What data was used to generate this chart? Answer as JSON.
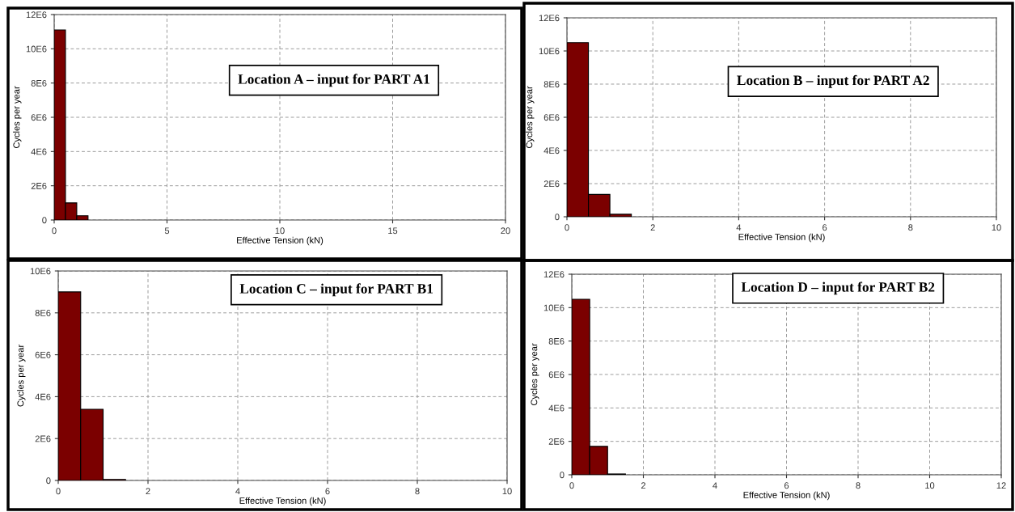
{
  "chart_data": [
    {
      "type": "histogram",
      "title": "Location A – input for PART A1",
      "xlabel": "Effective Tension (kN)",
      "ylabel": "Cycles per year",
      "bins": [
        0,
        0.5,
        1.0,
        1.5
      ],
      "values": [
        11100000,
        1000000,
        250000
      ],
      "color": "#7b0000",
      "xlim": [
        0,
        20
      ],
      "xticks": [
        0,
        5,
        10,
        15,
        20
      ],
      "ylim": [
        0,
        12000000
      ],
      "yticks": [
        {
          "value": 0,
          "label": "0"
        },
        {
          "value": 2000000,
          "label": "2E6"
        },
        {
          "value": 4000000,
          "label": "4E6"
        },
        {
          "value": 6000000,
          "label": "6E6"
        },
        {
          "value": 8000000,
          "label": "8E6"
        },
        {
          "value": 10000000,
          "label": "10E6"
        },
        {
          "value": 12000000,
          "label": "12E6"
        }
      ],
      "grid": true
    },
    {
      "type": "histogram",
      "title": "Location B – input for PART A2",
      "xlabel": "Effective Tension (kN)",
      "ylabel": "Cycles per year",
      "bins": [
        0,
        0.5,
        1.0,
        1.5
      ],
      "values": [
        10500000,
        1350000,
        150000
      ],
      "color": "#7b0000",
      "xlim": [
        0,
        10
      ],
      "xticks": [
        0,
        2,
        4,
        6,
        8,
        10
      ],
      "ylim": [
        0,
        12000000
      ],
      "yticks": [
        {
          "value": 0,
          "label": "0"
        },
        {
          "value": 2000000,
          "label": "2E6"
        },
        {
          "value": 4000000,
          "label": "4E6"
        },
        {
          "value": 6000000,
          "label": "6E6"
        },
        {
          "value": 8000000,
          "label": "8E6"
        },
        {
          "value": 10000000,
          "label": "10E6"
        },
        {
          "value": 12000000,
          "label": "12E6"
        }
      ],
      "grid": true
    },
    {
      "type": "histogram",
      "title": "Location C – input for PART B1",
      "xlabel": "Effective Tension (kN)",
      "ylabel": "Cycles per year",
      "bins": [
        0,
        0.5,
        1.0,
        1.5
      ],
      "values": [
        9000000,
        3400000,
        50000
      ],
      "color": "#7b0000",
      "xlim": [
        0,
        10
      ],
      "xticks": [
        0,
        2,
        4,
        6,
        8,
        10
      ],
      "ylim": [
        0,
        10000000
      ],
      "yticks": [
        {
          "value": 0,
          "label": "0"
        },
        {
          "value": 2000000,
          "label": "2E6"
        },
        {
          "value": 4000000,
          "label": "4E6"
        },
        {
          "value": 6000000,
          "label": "6E6"
        },
        {
          "value": 8000000,
          "label": "8E6"
        },
        {
          "value": 10000000,
          "label": "10E6"
        }
      ],
      "grid": true
    },
    {
      "type": "histogram",
      "title": "Location D – input for PART B2",
      "xlabel": "Effective Tension (kN)",
      "ylabel": "Cycles per year",
      "bins": [
        0,
        0.5,
        1.0,
        1.5
      ],
      "values": [
        10500000,
        1700000,
        50000
      ],
      "color": "#7b0000",
      "xlim": [
        0,
        12
      ],
      "xticks": [
        0,
        2,
        4,
        6,
        8,
        10,
        12
      ],
      "ylim": [
        0,
        12000000
      ],
      "yticks": [
        {
          "value": 0,
          "label": "0"
        },
        {
          "value": 2000000,
          "label": "2E6"
        },
        {
          "value": 4000000,
          "label": "4E6"
        },
        {
          "value": 6000000,
          "label": "6E6"
        },
        {
          "value": 8000000,
          "label": "8E6"
        },
        {
          "value": 10000000,
          "label": "10E6"
        },
        {
          "value": 12000000,
          "label": "12E6"
        }
      ],
      "grid": true
    }
  ]
}
